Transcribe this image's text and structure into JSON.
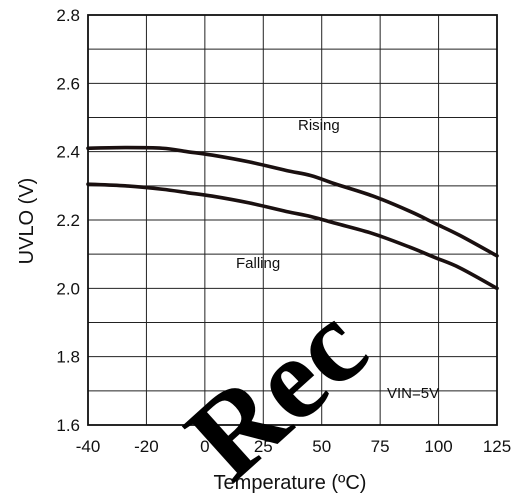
{
  "chart_data": {
    "type": "line",
    "title": "",
    "xlabel": "Temperature (ºC)",
    "ylabel": "UVLO (V)",
    "xlim": [
      -40,
      125
    ],
    "ylim": [
      1.6,
      2.8
    ],
    "x_ticks": [
      "-40",
      "-20",
      "0",
      "25",
      "50",
      "75",
      "100",
      "125"
    ],
    "y_ticks": [
      "1.6",
      "1.8",
      "2.0",
      "2.2",
      "2.4",
      "2.6",
      "2.8"
    ],
    "grid": true,
    "series": [
      {
        "name": "Rising",
        "x": [
          -40,
          -25,
          -10,
          0,
          10,
          25,
          40,
          50,
          60,
          75,
          90,
          100,
          110,
          125
        ],
        "y": [
          2.41,
          2.412,
          2.41,
          2.4,
          2.39,
          2.37,
          2.345,
          2.33,
          2.305,
          2.27,
          2.225,
          2.19,
          2.155,
          2.095
        ]
      },
      {
        "name": "Falling",
        "x": [
          -40,
          -25,
          -10,
          0,
          10,
          25,
          40,
          50,
          60,
          75,
          90,
          100,
          110,
          125
        ],
        "y": [
          2.305,
          2.3,
          2.29,
          2.28,
          2.27,
          2.25,
          2.225,
          2.21,
          2.19,
          2.16,
          2.12,
          2.09,
          2.06,
          2.0
        ]
      }
    ],
    "annotations": [
      "Rising",
      "Falling",
      "VIN=5V"
    ],
    "watermark": "Rec",
    "colors": {
      "line": "#1a1010",
      "grid": "#222222",
      "background": "#ffffff"
    }
  }
}
